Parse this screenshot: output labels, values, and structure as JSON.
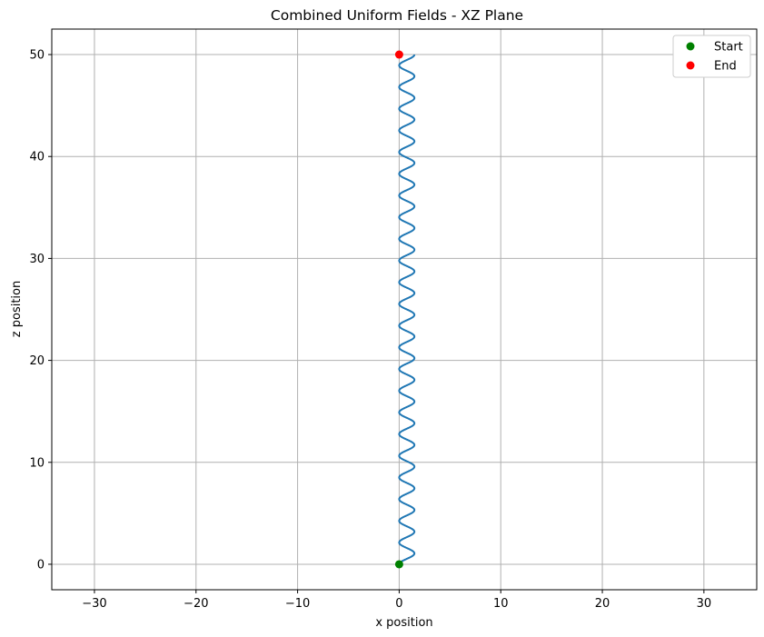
{
  "chart_data": {
    "type": "line",
    "title": "Combined Uniform Fields - XZ Plane",
    "xlabel": "x position",
    "ylabel": "z position",
    "xlim": [
      -34.2,
      35.2
    ],
    "ylim": [
      -2.5,
      52.5
    ],
    "xticks": [
      -30,
      -20,
      -10,
      0,
      10,
      20,
      30
    ],
    "yticks": [
      0,
      10,
      20,
      30,
      40,
      50
    ],
    "grid": true,
    "legend_position": "top-right",
    "series": [
      {
        "type": "line",
        "color": "#1f77b4",
        "description_x": "oscillates between 0 and about 1.5 with roughly 23 periods",
        "x_min": 0,
        "x_max": 1.5,
        "z_start": 0,
        "z_end": 50,
        "periods": 23.5
      }
    ],
    "markers": [
      {
        "name": "Start",
        "x": 0,
        "z": 0,
        "color": "#008000"
      },
      {
        "name": "End",
        "x": 0,
        "z": 50,
        "color": "#ff0000"
      }
    ]
  },
  "legend": {
    "items": [
      {
        "label": "Start",
        "color": "#008000"
      },
      {
        "label": "End",
        "color": "#ff0000"
      }
    ]
  }
}
